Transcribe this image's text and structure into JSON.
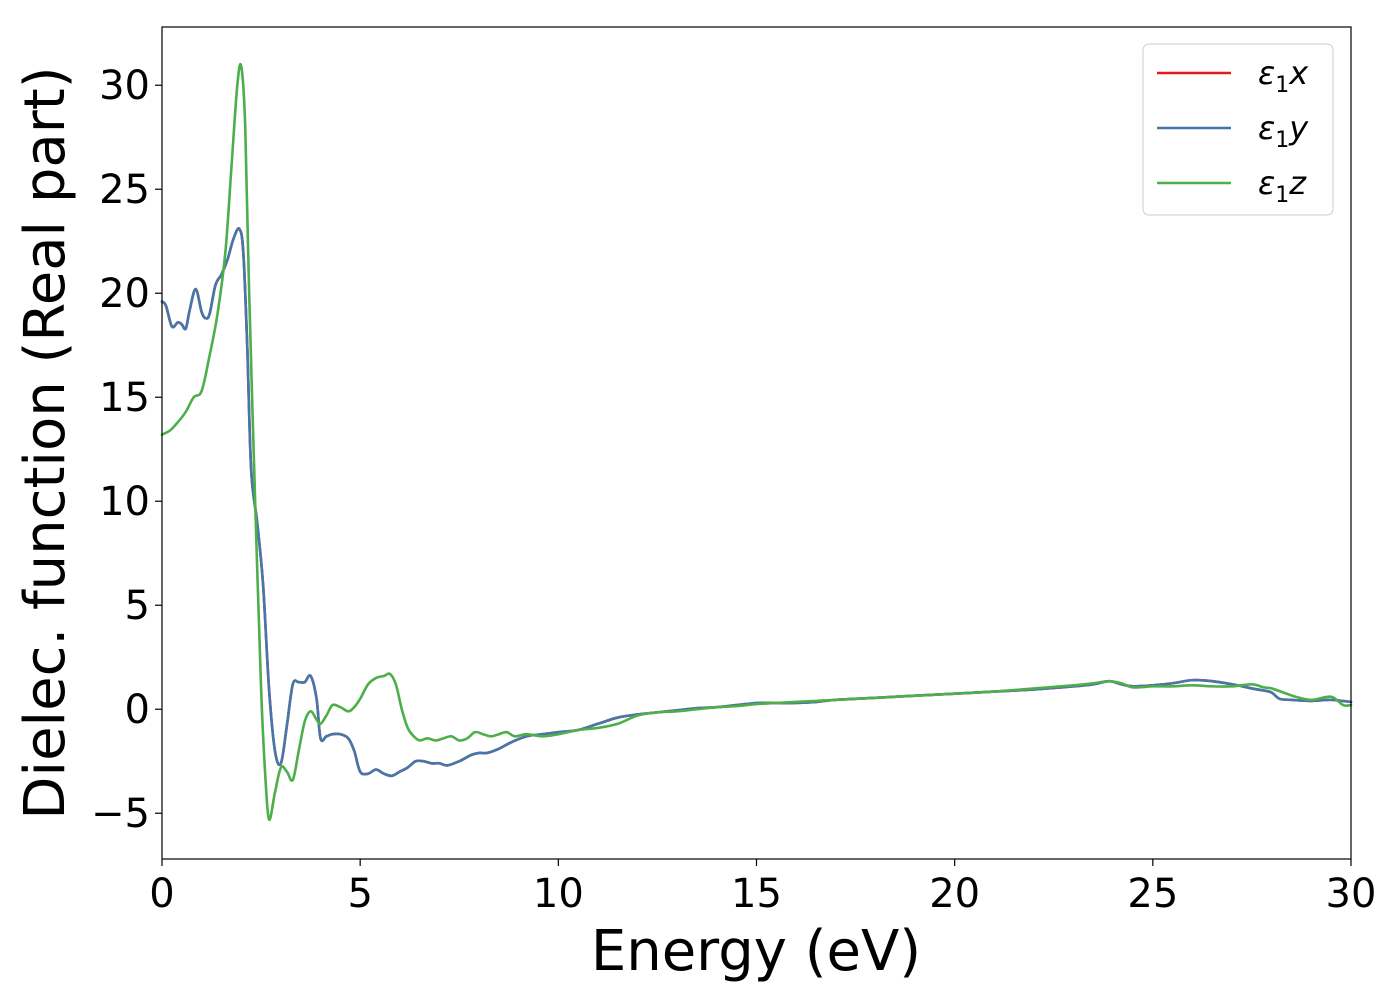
{
  "chart_data": {
    "type": "line",
    "xlabel": "Energy (eV)",
    "ylabel": "Dielec. function (Real part)",
    "xlim": [
      0,
      30
    ],
    "ylim": [
      -7.2,
      32.8
    ],
    "xticks": [
      0,
      5,
      10,
      15,
      20,
      25,
      30
    ],
    "yticks": [
      -5,
      0,
      5,
      10,
      15,
      20,
      25,
      30
    ],
    "xtick_labels": [
      "0",
      "5",
      "10",
      "15",
      "20",
      "25",
      "30"
    ],
    "ytick_labels": [
      "−5",
      "0",
      "5",
      "10",
      "15",
      "20",
      "25",
      "30"
    ],
    "grid": false,
    "legend_position": "top-right",
    "series": [
      {
        "name": "ε1x",
        "legend_main": "ε",
        "legend_sub": "1",
        "legend_var": "x",
        "color": "#e41a1c",
        "x": [
          0,
          0.1,
          0.25,
          0.4,
          0.5,
          0.6,
          0.7,
          0.85,
          1.0,
          1.1,
          1.2,
          1.35,
          1.5,
          1.65,
          1.8,
          1.95,
          2.05,
          2.15,
          2.25,
          2.4,
          2.55,
          2.7,
          2.85,
          3.0,
          3.15,
          3.3,
          3.45,
          3.6,
          3.75,
          3.9,
          4.0,
          4.15,
          4.3,
          4.5,
          4.7,
          4.85,
          5.0,
          5.2,
          5.4,
          5.6,
          5.8,
          6.0,
          6.2,
          6.4,
          6.6,
          6.8,
          7.0,
          7.2,
          7.5,
          7.8,
          8.0,
          8.2,
          8.5,
          8.8,
          9.2,
          9.6,
          10.0,
          10.5,
          11.0,
          11.5,
          12.0,
          12.5,
          13.0,
          13.5,
          14.0,
          14.5,
          15.0,
          15.5,
          16.0,
          16.5,
          17.0,
          18.0,
          19.0,
          20.0,
          21.0,
          22.0,
          23.0,
          23.5,
          23.9,
          24.2,
          24.5,
          25.0,
          25.5,
          26.0,
          26.5,
          27.0,
          27.5,
          27.8,
          28.0,
          28.2,
          28.5,
          29.0,
          29.5,
          30.0
        ],
        "y": [
          19.6,
          19.4,
          18.4,
          18.6,
          18.5,
          18.3,
          19.2,
          20.2,
          19.1,
          18.8,
          19.0,
          20.4,
          20.9,
          21.6,
          22.6,
          23.1,
          22.0,
          17.5,
          11.5,
          9.0,
          6.0,
          1.0,
          -2.0,
          -2.6,
          -0.8,
          1.2,
          1.3,
          1.3,
          1.6,
          0.5,
          -1.4,
          -1.3,
          -1.2,
          -1.2,
          -1.4,
          -2.0,
          -3.0,
          -3.1,
          -2.9,
          -3.1,
          -3.2,
          -3.0,
          -2.8,
          -2.5,
          -2.5,
          -2.6,
          -2.6,
          -2.7,
          -2.5,
          -2.2,
          -2.1,
          -2.1,
          -1.9,
          -1.6,
          -1.3,
          -1.2,
          -1.1,
          -1.0,
          -0.7,
          -0.4,
          -0.25,
          -0.15,
          -0.05,
          0.05,
          0.1,
          0.2,
          0.3,
          0.3,
          0.3,
          0.35,
          0.45,
          0.55,
          0.65,
          0.75,
          0.85,
          0.95,
          1.1,
          1.2,
          1.35,
          1.2,
          1.1,
          1.15,
          1.25,
          1.4,
          1.35,
          1.2,
          1.0,
          0.9,
          0.8,
          0.5,
          0.45,
          0.4,
          0.45,
          0.35
        ]
      },
      {
        "name": "ε1y",
        "legend_main": "ε",
        "legend_sub": "1",
        "legend_var": "y",
        "color": "#4477aa",
        "x": [
          0,
          0.1,
          0.25,
          0.4,
          0.5,
          0.6,
          0.7,
          0.85,
          1.0,
          1.1,
          1.2,
          1.35,
          1.5,
          1.65,
          1.8,
          1.95,
          2.05,
          2.15,
          2.25,
          2.4,
          2.55,
          2.7,
          2.85,
          3.0,
          3.15,
          3.3,
          3.45,
          3.6,
          3.75,
          3.9,
          4.0,
          4.15,
          4.3,
          4.5,
          4.7,
          4.85,
          5.0,
          5.2,
          5.4,
          5.6,
          5.8,
          6.0,
          6.2,
          6.4,
          6.6,
          6.8,
          7.0,
          7.2,
          7.5,
          7.8,
          8.0,
          8.2,
          8.5,
          8.8,
          9.2,
          9.6,
          10.0,
          10.5,
          11.0,
          11.5,
          12.0,
          12.5,
          13.0,
          13.5,
          14.0,
          14.5,
          15.0,
          15.5,
          16.0,
          16.5,
          17.0,
          18.0,
          19.0,
          20.0,
          21.0,
          22.0,
          23.0,
          23.5,
          23.9,
          24.2,
          24.5,
          25.0,
          25.5,
          26.0,
          26.5,
          27.0,
          27.5,
          27.8,
          28.0,
          28.2,
          28.5,
          29.0,
          29.5,
          30.0
        ],
        "y": [
          19.6,
          19.4,
          18.4,
          18.6,
          18.5,
          18.3,
          19.2,
          20.2,
          19.1,
          18.8,
          19.0,
          20.4,
          20.9,
          21.6,
          22.6,
          23.1,
          22.0,
          17.5,
          11.5,
          9.0,
          6.0,
          1.0,
          -2.0,
          -2.6,
          -0.8,
          1.2,
          1.3,
          1.3,
          1.6,
          0.5,
          -1.4,
          -1.3,
          -1.2,
          -1.2,
          -1.4,
          -2.0,
          -3.0,
          -3.1,
          -2.9,
          -3.1,
          -3.2,
          -3.0,
          -2.8,
          -2.5,
          -2.5,
          -2.6,
          -2.6,
          -2.7,
          -2.5,
          -2.2,
          -2.1,
          -2.1,
          -1.9,
          -1.6,
          -1.3,
          -1.2,
          -1.1,
          -1.0,
          -0.7,
          -0.4,
          -0.25,
          -0.15,
          -0.05,
          0.05,
          0.1,
          0.2,
          0.3,
          0.3,
          0.3,
          0.35,
          0.45,
          0.55,
          0.65,
          0.75,
          0.85,
          0.95,
          1.1,
          1.2,
          1.35,
          1.2,
          1.1,
          1.15,
          1.25,
          1.4,
          1.35,
          1.2,
          1.0,
          0.9,
          0.8,
          0.5,
          0.45,
          0.4,
          0.45,
          0.35
        ]
      },
      {
        "name": "ε1z",
        "legend_main": "ε",
        "legend_sub": "1",
        "legend_var": "z",
        "color": "#4daf4a",
        "x": [
          0,
          0.2,
          0.4,
          0.6,
          0.8,
          1.0,
          1.2,
          1.4,
          1.6,
          1.75,
          1.9,
          2.0,
          2.1,
          2.2,
          2.35,
          2.5,
          2.6,
          2.7,
          2.85,
          3.0,
          3.15,
          3.3,
          3.45,
          3.6,
          3.75,
          3.9,
          4.0,
          4.15,
          4.3,
          4.5,
          4.7,
          4.85,
          5.0,
          5.2,
          5.4,
          5.6,
          5.75,
          5.9,
          6.05,
          6.2,
          6.35,
          6.5,
          6.7,
          6.9,
          7.1,
          7.3,
          7.5,
          7.7,
          7.9,
          8.1,
          8.3,
          8.5,
          8.7,
          8.9,
          9.2,
          9.6,
          10.0,
          10.5,
          11.0,
          11.5,
          12.0,
          12.5,
          13.0,
          13.5,
          14.0,
          14.5,
          15.0,
          15.5,
          16.0,
          16.5,
          17.0,
          18.0,
          19.0,
          20.0,
          21.0,
          22.0,
          23.0,
          23.5,
          23.9,
          24.2,
          24.5,
          25.0,
          25.5,
          26.0,
          26.5,
          27.0,
          27.5,
          27.8,
          28.0,
          28.3,
          28.6,
          29.0,
          29.5,
          29.8,
          30.0
        ],
        "y": [
          13.2,
          13.4,
          13.8,
          14.3,
          15.0,
          15.3,
          17.0,
          19.0,
          22.0,
          26.0,
          30.0,
          30.9,
          28.0,
          20.0,
          10.0,
          1.0,
          -3.0,
          -5.3,
          -4.0,
          -2.8,
          -3.0,
          -3.4,
          -2.0,
          -0.6,
          -0.1,
          -0.5,
          -0.7,
          -0.3,
          0.2,
          0.1,
          -0.1,
          0.1,
          0.5,
          1.2,
          1.5,
          1.6,
          1.7,
          1.2,
          0.0,
          -0.9,
          -1.3,
          -1.5,
          -1.4,
          -1.5,
          -1.4,
          -1.3,
          -1.5,
          -1.4,
          -1.1,
          -1.2,
          -1.3,
          -1.2,
          -1.1,
          -1.3,
          -1.2,
          -1.3,
          -1.2,
          -1.0,
          -0.9,
          -0.7,
          -0.3,
          -0.15,
          -0.1,
          0.0,
          0.1,
          0.15,
          0.25,
          0.3,
          0.35,
          0.4,
          0.45,
          0.55,
          0.65,
          0.75,
          0.85,
          1.0,
          1.15,
          1.25,
          1.35,
          1.25,
          1.05,
          1.1,
          1.1,
          1.15,
          1.1,
          1.1,
          1.2,
          1.05,
          1.0,
          0.8,
          0.6,
          0.45,
          0.6,
          0.2,
          0.2
        ]
      }
    ]
  }
}
